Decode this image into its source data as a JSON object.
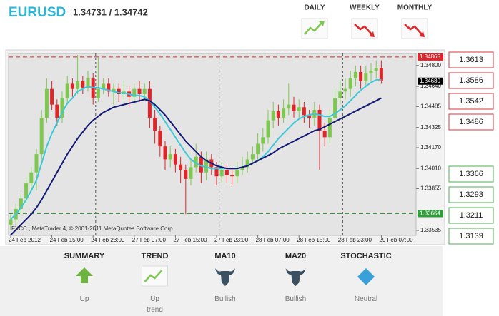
{
  "header": {
    "symbol": "EURUSD",
    "quote": "1.34731 / 1.34742"
  },
  "timeframes": [
    {
      "label": "DAILY",
      "trend": "up"
    },
    {
      "label": "WEEKLY",
      "trend": "down"
    },
    {
      "label": "MONTHLY",
      "trend": "down"
    }
  ],
  "chart_data": {
    "type": "candlestick",
    "watermark": "FXCC , MetaTrader 4, © 2001-2011 MetaQuotes Software Corp.",
    "categories": [
      "24 Feb 2012",
      null,
      null,
      null,
      null,
      null,
      null,
      null,
      "24 Feb 15:00",
      null,
      null,
      null,
      null,
      null,
      null,
      null,
      "24 Feb 23:00",
      null,
      null,
      null,
      null,
      null,
      null,
      null,
      "27 Feb 07:00",
      null,
      null,
      null,
      null,
      null,
      null,
      null,
      "27 Feb 15:00",
      null,
      null,
      null,
      null,
      null,
      null,
      null,
      "27 Feb 23:00",
      null,
      null,
      null,
      null,
      null,
      null,
      null,
      "28 Feb 07:00",
      null,
      null,
      null,
      null,
      null,
      null,
      null,
      "28 Feb 15:00",
      null,
      null,
      null,
      null,
      null,
      null,
      null,
      "28 Feb 23:00",
      null,
      null,
      null,
      null,
      null,
      null,
      null,
      "29 Feb 07:00"
    ],
    "open": [
      1.3358,
      1.3362,
      1.337,
      1.3378,
      1.339,
      1.3398,
      1.3412,
      1.344,
      1.3462,
      1.345,
      1.344,
      1.3455,
      1.3466,
      1.3462,
      1.3468,
      1.3463,
      1.347,
      1.3455,
      1.3462,
      1.3466,
      1.346,
      1.3462,
      1.3458,
      1.346,
      1.3456,
      1.3462,
      1.3458,
      1.3462,
      1.344,
      1.343,
      1.3418,
      1.3408,
      1.3412,
      1.3404,
      1.34,
      1.3393,
      1.3402,
      1.341,
      1.3398,
      1.3408,
      1.3402,
      1.3395,
      1.34,
      1.3396,
      1.3395,
      1.34,
      1.3402,
      1.3408,
      1.3412,
      1.342,
      1.3425,
      1.3438,
      1.3445,
      1.344,
      1.3447,
      1.345,
      1.3445,
      1.3448,
      1.3442,
      1.344,
      1.3446,
      1.343,
      1.3425,
      1.344,
      1.3455,
      1.346,
      1.3462,
      1.347,
      1.3475,
      1.3468,
      1.3474,
      1.3476,
      1.3478
    ],
    "high": [
      1.3366,
      1.3374,
      1.3382,
      1.3394,
      1.3402,
      1.3416,
      1.3446,
      1.347,
      1.3468,
      1.3454,
      1.346,
      1.3472,
      1.347,
      1.3488,
      1.3472,
      1.3476,
      1.3474,
      1.3486,
      1.347,
      1.347,
      1.3466,
      1.3466,
      1.3468,
      1.3464,
      1.3466,
      1.3468,
      1.3466,
      1.3468,
      1.3446,
      1.3434,
      1.3422,
      1.3418,
      1.3416,
      1.341,
      1.3404,
      1.3408,
      1.342,
      1.3414,
      1.3414,
      1.3412,
      1.3406,
      1.3406,
      1.3404,
      1.3402,
      1.3406,
      1.341,
      1.3414,
      1.3418,
      1.3428,
      1.3432,
      1.3446,
      1.3452,
      1.345,
      1.3454,
      1.3466,
      1.3456,
      1.3454,
      1.3452,
      1.3446,
      1.3452,
      1.345,
      1.3436,
      1.3446,
      1.3462,
      1.3468,
      1.347,
      1.3476,
      1.348,
      1.348,
      1.348,
      1.3482,
      1.3484,
      1.3484
    ],
    "low": [
      1.3354,
      1.3358,
      1.3366,
      1.3374,
      1.3386,
      1.3384,
      1.3408,
      1.3436,
      1.3446,
      1.3434,
      1.3436,
      1.345,
      1.3456,
      1.3458,
      1.3458,
      1.346,
      1.345,
      1.3452,
      1.3458,
      1.3456,
      1.345,
      1.3452,
      1.3454,
      1.3448,
      1.3452,
      1.3452,
      1.3454,
      1.3432,
      1.342,
      1.341,
      1.34,
      1.3402,
      1.3398,
      1.339,
      1.3366,
      1.3388,
      1.3398,
      1.339,
      1.3392,
      1.3396,
      1.3388,
      1.339,
      1.339,
      1.3388,
      1.339,
      1.3396,
      1.3398,
      1.3404,
      1.3406,
      1.3414,
      1.342,
      1.3432,
      1.3434,
      1.3436,
      1.3442,
      1.344,
      1.344,
      1.3436,
      1.3432,
      1.3434,
      1.34,
      1.3418,
      1.342,
      1.3436,
      1.345,
      1.3454,
      1.3456,
      1.3464,
      1.3462,
      1.3464,
      1.3468,
      1.347,
      1.3466
    ],
    "close": [
      1.3362,
      1.337,
      1.3378,
      1.339,
      1.3398,
      1.3412,
      1.344,
      1.3462,
      1.345,
      1.344,
      1.3455,
      1.3466,
      1.3462,
      1.3468,
      1.3463,
      1.347,
      1.3455,
      1.3462,
      1.3466,
      1.346,
      1.3462,
      1.3458,
      1.346,
      1.3456,
      1.3462,
      1.3458,
      1.3462,
      1.344,
      1.343,
      1.3418,
      1.3408,
      1.3412,
      1.3404,
      1.34,
      1.3393,
      1.3402,
      1.341,
      1.3398,
      1.3408,
      1.3402,
      1.3395,
      1.34,
      1.3396,
      1.3395,
      1.34,
      1.3402,
      1.3408,
      1.3412,
      1.342,
      1.3425,
      1.3438,
      1.3445,
      1.344,
      1.3447,
      1.345,
      1.3445,
      1.3448,
      1.3442,
      1.344,
      1.3446,
      1.343,
      1.3425,
      1.344,
      1.3455,
      1.346,
      1.3462,
      1.347,
      1.3475,
      1.3468,
      1.3474,
      1.3476,
      1.3478,
      1.3468
    ],
    "up_color": "#7ec850",
    "down_color": "#e0252a",
    "lines": [
      {
        "color": "#3cc8d8",
        "values": [
          1.3362,
          1.3366,
          1.3371,
          1.3377,
          1.3384,
          1.3392,
          1.3405,
          1.3418,
          1.3428,
          1.3436,
          1.3444,
          1.3451,
          1.3455,
          1.346,
          1.3462,
          1.3464,
          1.3463,
          1.3463,
          1.3462,
          1.3461,
          1.346,
          1.3459,
          1.3459,
          1.3458,
          1.3457,
          1.3457,
          1.3456,
          1.3453,
          1.3448,
          1.3443,
          1.3437,
          1.3431,
          1.3425,
          1.3419,
          1.3413,
          1.3408,
          1.3405,
          1.3403,
          1.3402,
          1.3401,
          1.3401,
          1.3401,
          1.3401,
          1.3401,
          1.3401,
          1.3402,
          1.3403,
          1.3405,
          1.3407,
          1.341,
          1.3414,
          1.3419,
          1.3424,
          1.3428,
          1.3432,
          1.3436,
          1.3439,
          1.3441,
          1.3442,
          1.3443,
          1.3442,
          1.3441,
          1.3441,
          1.3443,
          1.3446,
          1.3449,
          1.3453,
          1.3457,
          1.3461,
          1.3464,
          1.3467,
          1.3469,
          1.3469
        ]
      },
      {
        "color": "#141a78",
        "values": [
          1.335,
          1.3354,
          1.3358,
          1.3362,
          1.3366,
          1.3371,
          1.3377,
          1.3384,
          1.3391,
          1.3398,
          1.3405,
          1.3412,
          1.3418,
          1.3424,
          1.3429,
          1.3434,
          1.3438,
          1.3441,
          1.3444,
          1.3446,
          1.3448,
          1.3449,
          1.345,
          1.3451,
          1.3452,
          1.3453,
          1.3454,
          1.3453,
          1.345,
          1.3446,
          1.3442,
          1.3437,
          1.3432,
          1.3427,
          1.3422,
          1.3418,
          1.3414,
          1.341,
          1.3407,
          1.3405,
          1.3403,
          1.3402,
          1.3401,
          1.3401,
          1.3401,
          1.3402,
          1.3403,
          1.3405,
          1.3407,
          1.3409,
          1.3411,
          1.3413,
          1.3416,
          1.3418,
          1.342,
          1.3422,
          1.3424,
          1.3426,
          1.3428,
          1.343,
          1.3431,
          1.3433,
          1.3435,
          1.3437,
          1.3439,
          1.3441,
          1.3443,
          1.3445,
          1.3447,
          1.3449,
          1.3451,
          1.3453,
          1.3455
        ]
      }
    ],
    "separators": [
      17,
      41,
      65
    ],
    "ylim": [
      1.33497,
      1.34892
    ],
    "yticks": [
      {
        "value": 1.348,
        "label": "1.34800"
      },
      {
        "value": 1.3464,
        "label": "1.34640"
      },
      {
        "value": 1.34485,
        "label": "1.34485"
      },
      {
        "value": 1.34325,
        "label": "1.34325"
      },
      {
        "value": 1.3417,
        "label": "1.34170"
      },
      {
        "value": 1.3401,
        "label": "1.34010"
      },
      {
        "value": 1.33855,
        "label": "1.33855"
      },
      {
        "value": 1.33535,
        "label": "1.33535"
      }
    ],
    "levels": [
      {
        "value": 1.34865,
        "label": "1.34865",
        "color": "#e0262b",
        "dashed": true
      },
      {
        "value": 1.3468,
        "label": "1.34680",
        "color": "#000000",
        "dashed": false
      },
      {
        "value": 1.33664,
        "label": "1.33664",
        "color": "#2e9e3a",
        "dashed": true
      }
    ]
  },
  "pivots": {
    "resistance": [
      "1.3613",
      "1.3586",
      "1.3542",
      "1.3486"
    ],
    "support": [
      "1.3366",
      "1.3293",
      "1.3211",
      "1.3139"
    ]
  },
  "indicators": [
    {
      "title": "SUMMARY",
      "status": "Up",
      "icon": "arrow"
    },
    {
      "title": "TREND",
      "status": "Up trend",
      "icon": "chart"
    },
    {
      "title": "MA10",
      "status": "Bullish",
      "icon": "bull"
    },
    {
      "title": "MA20",
      "status": "Bullish",
      "icon": "bull"
    },
    {
      "title": "STOCHASTIC",
      "status": "Neutral",
      "icon": "diamond"
    }
  ]
}
